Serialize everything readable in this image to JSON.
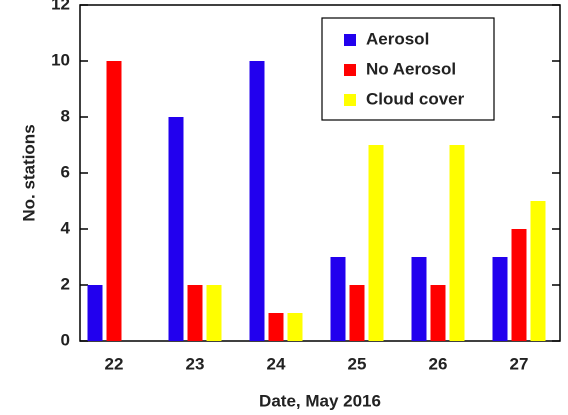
{
  "chart_data": {
    "type": "bar",
    "xlabel": "Date, May 2016",
    "ylabel": "No. stations",
    "categories": [
      "22",
      "23",
      "24",
      "25",
      "26",
      "27"
    ],
    "series": [
      {
        "name": "Aerosol",
        "color": "#2200ee",
        "values": [
          2,
          8,
          10,
          3,
          3,
          3
        ]
      },
      {
        "name": "No Aerosol",
        "color": "#ff0000",
        "values": [
          10,
          2,
          1,
          2,
          2,
          4
        ]
      },
      {
        "name": "Cloud cover",
        "color": "#ffff00",
        "values": [
          0,
          2,
          1,
          7,
          7,
          5
        ]
      }
    ],
    "ylim": [
      0,
      12
    ],
    "yticks": [
      0,
      2,
      4,
      6,
      8,
      10,
      12
    ],
    "grid": false,
    "legend": "upper right"
  }
}
